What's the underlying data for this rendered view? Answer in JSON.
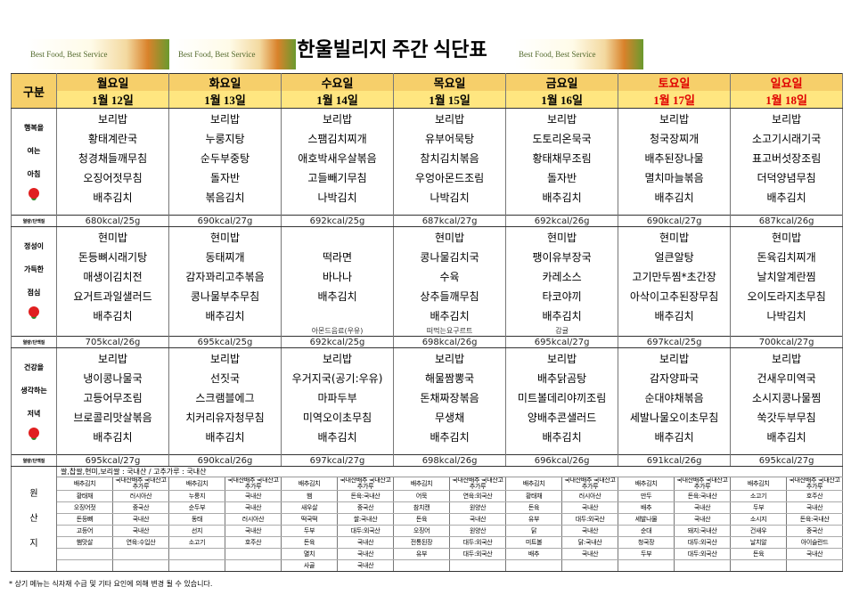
{
  "header": {
    "title": "한울빌리지 주간 식단표",
    "banner": "Best Food, Best Service"
  },
  "table": {
    "corner": "구분",
    "days": [
      {
        "name": "월요일",
        "date": "1월 12일"
      },
      {
        "name": "화요일",
        "date": "1월 13일"
      },
      {
        "name": "수요일",
        "date": "1월 14일"
      },
      {
        "name": "목요일",
        "date": "1월 15일"
      },
      {
        "name": "금요일",
        "date": "1월 16일"
      },
      {
        "name": "토요일",
        "date": "1월 17일",
        "red": true
      },
      {
        "name": "일요일",
        "date": "1월 18일",
        "red": true
      }
    ],
    "kcal_label": "열량/단백질",
    "meals": [
      {
        "label": [
          "행복을",
          "여는",
          "아침"
        ],
        "items": [
          [
            "보리밥",
            "황태계란국",
            "청경채들깨무침",
            "오징어젓무침",
            "배추김치"
          ],
          [
            "보리밥",
            "누룽지탕",
            "순두부중탕",
            "돌자반",
            "볶음김치"
          ],
          [
            "보리밥",
            "스팸김치찌개",
            "애호박새우살볶음",
            "고들빼기무침",
            "나박김치"
          ],
          [
            "보리밥",
            "유부어묵탕",
            "참치김치볶음",
            "우엉아몬드조림",
            "나박김치"
          ],
          [
            "보리밥",
            "도토리온묵국",
            "황태채무조림",
            "돌자반",
            "배추김치"
          ],
          [
            "보리밥",
            "청국장찌개",
            "배추된장나물",
            "멸치마늘볶음",
            "배추김치"
          ],
          [
            "보리밥",
            "소고기시래기국",
            "표고버섯장조림",
            "더덕양념무침",
            "배추김치"
          ]
        ],
        "kcal": [
          "680kcal/25g",
          "690kcal/27g",
          "692kcal/25g",
          "687kcal/27g",
          "692kcal/26g",
          "690kcal/27g",
          "687kcal/26g"
        ]
      },
      {
        "label": [
          "정성이",
          "가득한",
          "점심"
        ],
        "items": [
          [
            "현미밥",
            "돈등뼈시래기탕",
            "매생이김치전",
            "요거트과일샐러드",
            "배추김치"
          ],
          [
            "현미밥",
            "동태찌개",
            "감자꽈리고추볶음",
            "콩나물부추무침",
            "배추김치"
          ],
          [
            null,
            "떡라면",
            "바나나",
            "배추김치",
            null
          ],
          [
            "현미밥",
            "콩나물김치국",
            "수육",
            "상추들깨무침",
            "배추김치"
          ],
          [
            "현미밥",
            "팽이유부장국",
            "카레소스",
            "타코야끼",
            "배추김치"
          ],
          [
            "현미밥",
            "얼큰알탕",
            "고기만두찜*초간장",
            "아삭이고추된장무침",
            "배추김치"
          ],
          [
            "현미밥",
            "돈육김치찌개",
            "날치알계란찜",
            "오이도라지초무침",
            "나박김치"
          ]
        ],
        "extras": [
          null,
          null,
          "아몬드음료(우유)",
          "떠먹는요구르트",
          "감귤",
          null,
          null
        ],
        "kcal": [
          "705kcal/26g",
          "695kcal/25g",
          "692kcal/25g",
          "698kcal/26g",
          "695kcal/27g",
          "697kcal/25g",
          "700kcal/27g"
        ]
      },
      {
        "label": [
          "건강을",
          "생각하는",
          "저녁"
        ],
        "items": [
          [
            "보리밥",
            "냉이콩나물국",
            "고등어무조림",
            "브로콜리맛살볶음",
            "배추김치"
          ],
          [
            "보리밥",
            "선짓국",
            "스크램블에그",
            "치커리유자청무침",
            "배추김치"
          ],
          [
            "보리밥",
            "우거지국(공기:우유)",
            "마파두부",
            "미역오이초무침",
            "배추김치"
          ],
          [
            "보리밥",
            "해물짬뽕국",
            "돈채짜장볶음",
            "무생채",
            "배추김치"
          ],
          [
            "보리밥",
            "배추닭곰탕",
            "미트볼데리야끼조림",
            "양배추콘샐러드",
            "배추김치"
          ],
          [
            "보리밥",
            "감자양파국",
            "순대야채볶음",
            "세발나물오이초무침",
            "배추김치"
          ],
          [
            "보리밥",
            "건새우미역국",
            "소시지콩나물찜",
            "쑥갓두부무침",
            "배추김치"
          ]
        ],
        "kcal": [
          "695kcal/27g",
          "690kcal/26g",
          "697kcal/27g",
          "698kcal/26g",
          "696kcal/26g",
          "691kcal/26g",
          "695kcal/27g"
        ]
      }
    ]
  },
  "origin": {
    "label": [
      "원",
      "산",
      "지"
    ],
    "note": "쌀,찹쌀,현미,보리쌀 : 국내산 / 고추가루 : 국내산",
    "days": [
      [
        [
          "배추김치",
          "국내산배추 국내산고추가루"
        ],
        [
          "황태채",
          "러시아산"
        ],
        [
          "오징어젓",
          "중국산"
        ],
        [
          "돈등뼈",
          "국내산"
        ],
        [
          "고등어",
          "국내산"
        ],
        [
          "햄맛살",
          "연육:수입산"
        ]
      ],
      [
        [
          "배추김치",
          "국내산배추 국내산고추가루"
        ],
        [
          "누룽지",
          "국내산"
        ],
        [
          "순두부",
          "국내산"
        ],
        [
          "동태",
          "러시아산"
        ],
        [
          "선지",
          "국내산"
        ],
        [
          "소고기",
          "호주산"
        ]
      ],
      [
        [
          "배추김치",
          "국내산배추 국내산고추가루"
        ],
        [
          "햄",
          "돈육:국내산"
        ],
        [
          "새우살",
          "중국산"
        ],
        [
          "떡국떡",
          "쌀:국내산"
        ],
        [
          "두부",
          "대두:외국산"
        ],
        [
          "돈육",
          "국내산"
        ],
        [
          "멸치",
          "국내산"
        ],
        [
          "사골",
          "국내산"
        ]
      ],
      [
        [
          "배추김치",
          "국내산배추 국내산고추가루"
        ],
        [
          "어묵",
          "연육:외국산"
        ],
        [
          "참치캔",
          "원양산"
        ],
        [
          "돈육",
          "국내산"
        ],
        [
          "오징어",
          "원양산"
        ],
        [
          "전통된장",
          "대두:외국산"
        ],
        [
          "유부",
          "대두:외국산"
        ]
      ],
      [
        [
          "배추김치",
          "국내산배추 국내산고추가루"
        ],
        [
          "황태채",
          "러시아산"
        ],
        [
          "돈육",
          "국내산"
        ],
        [
          "유부",
          "대두:외국산"
        ],
        [
          "닭",
          "국내산"
        ],
        [
          "미트볼",
          "닭:국내산"
        ],
        [
          "배추",
          "국내산"
        ]
      ],
      [
        [
          "배추김치",
          "국내산배추 국내산고추가루"
        ],
        [
          "만두",
          "돈육:국내산"
        ],
        [
          "배추",
          "국내산"
        ],
        [
          "세발나물",
          "국내산"
        ],
        [
          "순대",
          "돼지:국내산"
        ],
        [
          "청국장",
          "대두:외국산"
        ],
        [
          "두부",
          "대두:외국산"
        ]
      ],
      [
        [
          "배추김치",
          "국내산배추 국내산고추가루"
        ],
        [
          "소고기",
          "호주산"
        ],
        [
          "두부",
          "국내산"
        ],
        [
          "소시지",
          "돈육:국내산"
        ],
        [
          "건새우",
          "중국산"
        ],
        [
          "날치알",
          "아이슬란드"
        ],
        [
          "돈육",
          "국내산"
        ]
      ]
    ]
  },
  "footnote": "* 상기 메뉴는 식자재 수급 및 기타 요인에 의해 변경 될 수 있습니다."
}
